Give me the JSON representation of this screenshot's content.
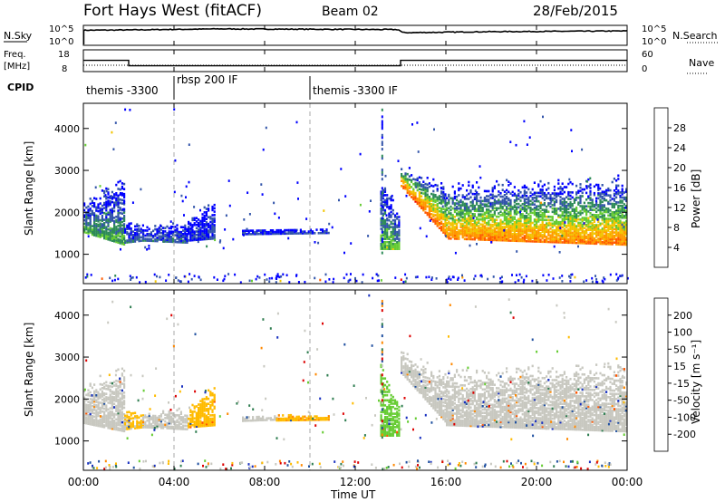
{
  "header": {
    "station": "Fort Hays West (fitACF)",
    "beam": "Beam 02",
    "date": "28/Feb/2015"
  },
  "labels": {
    "nsky": "N.Sky",
    "nsearch": "N.Search",
    "freq_line1": "Freq.",
    "freq_line2": "[MHz]",
    "nave": "Nave",
    "cpid": "CPID",
    "nsky_top": "10^5",
    "nsky_bottom": "10^0",
    "nsearch_top": "10^5",
    "nsearch_bottom": "10^0",
    "freq_top": "18",
    "freq_bottom": "8",
    "nave_top": "60",
    "nave_bottom": "0",
    "slant_range": "Slant Range [km]",
    "time_axis": "Time UT",
    "power_axis": "Power [dB]",
    "velocity_axis": "Velocity [m s⁻¹]"
  },
  "cpid_segments": [
    {
      "label": "themis -3300",
      "start": 0.0
    },
    {
      "label": "rbsp 200 IF",
      "start": 4.0
    },
    {
      "label": "themis -3300 IF",
      "start": 10.0
    }
  ],
  "time_ticks": [
    "00:00",
    "04:00",
    "08:00",
    "12:00",
    "16:00",
    "20:00",
    "00:00"
  ],
  "range_ticks": [
    "1000",
    "2000",
    "3000",
    "4000"
  ],
  "power_ticks": [
    "4",
    "8",
    "12",
    "16",
    "20",
    "24",
    "28"
  ],
  "velocity_ticks": [
    "-200",
    "-100",
    "-50",
    "-15",
    "15",
    "50",
    "100",
    "200"
  ],
  "colors": {
    "power": [
      "#0000ff",
      "#3355aa",
      "#2e8b57",
      "#66cc33",
      "#f2c400",
      "#ff9900",
      "#ff5a00",
      "#ee0000"
    ],
    "velocity": [
      "#dd0000",
      "#ff5500",
      "#ff8800",
      "#ffbb00",
      "#c8c8c0",
      "#66cc33",
      "#2e7d50",
      "#2050a0",
      "#1830c0"
    ],
    "ground": "#c8c8c0"
  },
  "chart_data": [
    {
      "type": "line",
      "name": "nsky-nsearch-panel",
      "x_range": [
        0,
        24
      ],
      "series": [
        {
          "name": "N.Sky",
          "x": [
            0,
            2,
            6,
            10,
            13.9,
            14.1,
            18,
            24
          ],
          "y": [
            4.1,
            4.2,
            4.5,
            4.4,
            4.3,
            3.4,
            3.7,
            3.9
          ]
        },
        {
          "name": "N.Search",
          "x": [
            0,
            24
          ],
          "y": [
            0,
            0
          ]
        }
      ]
    },
    {
      "type": "line",
      "name": "freq-nave-panel",
      "x_range": [
        0,
        24
      ],
      "series": [
        {
          "name": "Freq.",
          "x": [
            0,
            2.0,
            2.0,
            14.0,
            14.0,
            24
          ],
          "y": [
            13.2,
            13.2,
            10.2,
            10.2,
            13.2,
            13.2
          ]
        },
        {
          "name": "Nave",
          "x": [
            0,
            24
          ],
          "y": [
            15,
            15
          ]
        }
      ]
    },
    {
      "type": "heatmap",
      "name": "power-panel",
      "xlabel": "Time UT",
      "ylabel": "Slant Range [km]",
      "colorbar": "Power [dB]",
      "x_range": [
        0,
        24
      ],
      "y_range": [
        300,
        4600
      ],
      "c_range": [
        0,
        32
      ],
      "dashed_lines_x": [
        4.0,
        10.0
      ],
      "bands": [
        {
          "x": [
            0.0,
            1.8
          ],
          "lower": [
            1500,
            1200
          ],
          "upper": [
            2100,
            2500
          ],
          "peak": 12,
          "upper_noise": 0.3
        },
        {
          "x": [
            1.8,
            2.6
          ],
          "lower": [
            1250,
            1300
          ],
          "upper": [
            1700,
            1600
          ],
          "peak": 8,
          "upper_noise": 0.3
        },
        {
          "x": [
            2.6,
            4.6
          ],
          "lower": [
            1300,
            1250
          ],
          "upper": [
            1600,
            1650
          ],
          "peak": 7,
          "upper_noise": 0.3
        },
        {
          "x": [
            4.6,
            5.8
          ],
          "lower": [
            1300,
            1350
          ],
          "upper": [
            1700,
            2200
          ],
          "peak": 5,
          "upper_noise": 0.2
        },
        {
          "x": [
            7.0,
            10.8
          ],
          "lower": [
            1450,
            1480
          ],
          "upper": [
            1560,
            1580
          ],
          "peak": 5,
          "upper_noise": 0.1
        },
        {
          "x": [
            13.1,
            13.9
          ],
          "lower": [
            1100,
            1100
          ],
          "upper": [
            2600,
            1800
          ],
          "peak": 14,
          "upper_noise": 0.2
        },
        {
          "x": [
            14.0,
            16.0
          ],
          "lower": [
            2600,
            1400
          ],
          "upper": [
            3000,
            2400
          ],
          "peak": 26,
          "upper_noise": 0.4
        },
        {
          "x": [
            16.0,
            24.0
          ],
          "lower": [
            1350,
            1200
          ],
          "upper": [
            2400,
            2500
          ],
          "peak": 24,
          "upper_noise": 0.5
        }
      ]
    },
    {
      "type": "heatmap",
      "name": "velocity-panel",
      "xlabel": "Time UT",
      "ylabel": "Slant Range [km]",
      "colorbar": "Velocity [m s⁻¹]",
      "x_range": [
        0,
        24
      ],
      "y_range": [
        300,
        4600
      ],
      "c_range": [
        -250,
        250
      ],
      "dashed_lines_x": [
        4.0,
        10.0
      ],
      "bands": [
        {
          "x": [
            0.0,
            1.8
          ],
          "lower": [
            1400,
            1200
          ],
          "upper": [
            2100,
            2500
          ],
          "velocity": 0,
          "upper_noise": 0.3
        },
        {
          "x": [
            1.8,
            2.6
          ],
          "lower": [
            1250,
            1300
          ],
          "upper": [
            1700,
            1600
          ],
          "velocity": -25,
          "upper_noise": 0.3
        },
        {
          "x": [
            2.6,
            4.6
          ],
          "lower": [
            1300,
            1250
          ],
          "upper": [
            1600,
            1650
          ],
          "velocity": 0,
          "upper_noise": 0.3
        },
        {
          "x": [
            4.6,
            5.8
          ],
          "lower": [
            1300,
            1350
          ],
          "upper": [
            1700,
            2200
          ],
          "velocity": -30,
          "upper_noise": 0.2
        },
        {
          "x": [
            7.0,
            8.5
          ],
          "lower": [
            1450,
            1480
          ],
          "upper": [
            1560,
            1560
          ],
          "velocity": 0,
          "upper_noise": 0.1
        },
        {
          "x": [
            8.5,
            10.8
          ],
          "lower": [
            1460,
            1480
          ],
          "upper": [
            1580,
            1580
          ],
          "velocity": -40,
          "upper_noise": 0.1
        },
        {
          "x": [
            13.1,
            13.9
          ],
          "lower": [
            1100,
            1100
          ],
          "upper": [
            2600,
            1800
          ],
          "velocity": 30,
          "upper_noise": 0.2
        },
        {
          "x": [
            14.0,
            16.0
          ],
          "lower": [
            2600,
            1400
          ],
          "upper": [
            3000,
            2400
          ],
          "velocity": 0,
          "upper_noise": 0.4
        },
        {
          "x": [
            16.0,
            24.0
          ],
          "lower": [
            1350,
            1200
          ],
          "upper": [
            2400,
            2500
          ],
          "velocity": 0,
          "upper_noise": 0.5
        }
      ]
    }
  ]
}
